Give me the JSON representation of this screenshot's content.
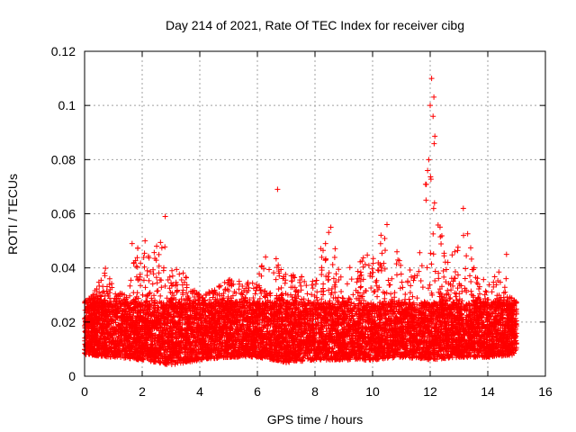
{
  "colors": {
    "series": "#ff0000",
    "grid": "#a0a0a0",
    "axis": "#000000",
    "background": "#ffffff"
  },
  "chart_data": {
    "type": "scatter",
    "title": "Day 214 of 2021, Rate Of TEC Index for receiver cibg",
    "xlabel": "GPS time / hours",
    "ylabel": "ROTI / TECUs",
    "xlim": [
      0,
      16
    ],
    "ylim": [
      0,
      0.12
    ],
    "x_ticks": [
      0,
      2,
      4,
      6,
      8,
      10,
      12,
      14,
      16
    ],
    "x_tick_labels": [
      "0",
      "2",
      "4",
      "6",
      "8",
      "10",
      "12",
      "14",
      "16"
    ],
    "y_ticks": [
      0,
      0.02,
      0.04,
      0.06,
      0.08,
      0.1,
      0.12
    ],
    "y_tick_labels": [
      "0",
      "0.02",
      "0.04",
      "0.06",
      "0.08",
      "0.1",
      "0.12"
    ],
    "grid": true,
    "marker": "+",
    "series": [
      {
        "name": "ROTI",
        "envelope_note": "Dense cloud of points; baseline approx 0.008-0.028 TECU across 0-15 h",
        "upper_envelope": {
          "x": [
            0.0,
            0.3,
            0.7,
            1.0,
            1.5,
            1.8,
            2.2,
            2.6,
            2.8,
            3.0,
            3.5,
            4.0,
            4.5,
            5.0,
            5.5,
            6.0,
            6.3,
            6.7,
            7.0,
            7.5,
            8.0,
            8.5,
            9.0,
            9.5,
            10.0,
            10.5,
            11.0,
            11.5,
            11.9,
            12.1,
            12.4,
            12.8,
            13.2,
            13.6,
            14.0,
            14.5,
            15.0
          ],
          "y": [
            0.028,
            0.03,
            0.043,
            0.032,
            0.03,
            0.049,
            0.045,
            0.052,
            0.059,
            0.042,
            0.038,
            0.03,
            0.032,
            0.036,
            0.035,
            0.038,
            0.047,
            0.043,
            0.04,
            0.038,
            0.042,
            0.056,
            0.04,
            0.042,
            0.048,
            0.057,
            0.042,
            0.051,
            0.075,
            0.11,
            0.057,
            0.044,
            0.062,
            0.04,
            0.034,
            0.04,
            0.027
          ]
        },
        "lower_envelope": {
          "x": [
            0.0,
            1.0,
            2.0,
            3.0,
            4.0,
            5.0,
            6.0,
            7.0,
            8.0,
            9.0,
            10.0,
            11.0,
            12.0,
            13.0,
            14.0,
            15.0
          ],
          "y": [
            0.008,
            0.007,
            0.006,
            0.004,
            0.006,
            0.007,
            0.007,
            0.005,
            0.006,
            0.006,
            0.006,
            0.007,
            0.006,
            0.007,
            0.007,
            0.008
          ]
        },
        "notable_points": [
          {
            "x": 6.7,
            "y": 0.069
          },
          {
            "x": 12.05,
            "y": 0.11
          },
          {
            "x": 12.0,
            "y": 0.1
          },
          {
            "x": 12.1,
            "y": 0.096
          },
          {
            "x": 11.95,
            "y": 0.08
          },
          {
            "x": 12.15,
            "y": 0.064
          },
          {
            "x": 13.15,
            "y": 0.062
          },
          {
            "x": 2.8,
            "y": 0.059
          },
          {
            "x": 10.5,
            "y": 0.056
          },
          {
            "x": 8.55,
            "y": 0.055
          },
          {
            "x": 2.1,
            "y": 0.05
          },
          {
            "x": 1.65,
            "y": 0.049
          },
          {
            "x": 14.65,
            "y": 0.045
          }
        ],
        "seed": 214,
        "approx_point_count": 9000
      }
    ]
  }
}
